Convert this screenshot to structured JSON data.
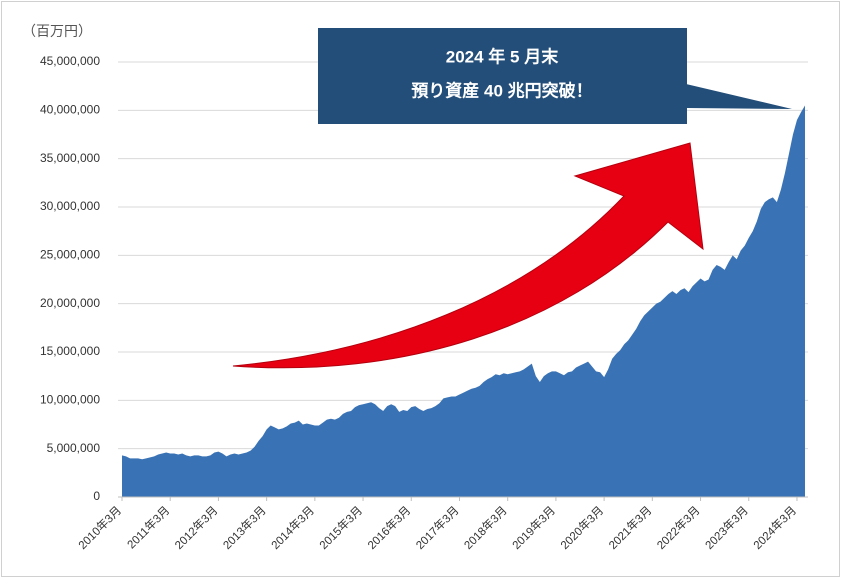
{
  "chart_data": {
    "type": "area",
    "y_label": "（百万円）",
    "annotations": [
      "2024 年 5 月末",
      "預り資産 40 兆円突破！"
    ],
    "color": "#3a73b5",
    "grid": true,
    "ylim": [
      0,
      45000000
    ],
    "yticks": [
      0,
      {
        "value": 5000000,
        "label": "5,000,000"
      },
      {
        "value": 10000000,
        "label": "10,000,000"
      },
      {
        "value": 15000000,
        "label": "15,000,000"
      },
      {
        "value": 20000000,
        "label": "20,000,000"
      },
      {
        "value": 25000000,
        "label": "25,000,000"
      },
      {
        "value": 30000000,
        "label": "30,000,000"
      },
      {
        "value": 35000000,
        "label": "35,000,000"
      },
      {
        "value": 40000000,
        "label": "40,000,000"
      },
      {
        "value": 45000000,
        "label": "45,000,000"
      }
    ],
    "categories": [
      "2010年3月",
      null,
      null,
      null,
      null,
      null,
      null,
      null,
      null,
      null,
      null,
      null,
      "2011年3月",
      null,
      null,
      null,
      null,
      null,
      null,
      null,
      null,
      null,
      null,
      null,
      "2012年3月",
      null,
      null,
      null,
      null,
      null,
      null,
      null,
      null,
      null,
      null,
      null,
      "2013年3月",
      null,
      null,
      null,
      null,
      null,
      null,
      null,
      null,
      null,
      null,
      null,
      "2014年3月",
      null,
      null,
      null,
      null,
      null,
      null,
      null,
      null,
      null,
      null,
      null,
      "2015年3月",
      null,
      null,
      null,
      null,
      null,
      null,
      null,
      null,
      null,
      null,
      null,
      "2016年3月",
      null,
      null,
      null,
      null,
      null,
      null,
      null,
      null,
      null,
      null,
      null,
      "2017年3月",
      null,
      null,
      null,
      null,
      null,
      null,
      null,
      null,
      null,
      null,
      null,
      "2018年3月",
      null,
      null,
      null,
      null,
      null,
      null,
      null,
      null,
      null,
      null,
      null,
      "2019年3月",
      null,
      null,
      null,
      null,
      null,
      null,
      null,
      null,
      null,
      null,
      null,
      "2020年3月",
      null,
      null,
      null,
      null,
      null,
      null,
      null,
      null,
      null,
      null,
      null,
      "2021年3月",
      null,
      null,
      null,
      null,
      null,
      null,
      null,
      null,
      null,
      null,
      null,
      "2022年3月",
      null,
      null,
      null,
      null,
      null,
      null,
      null,
      null,
      null,
      null,
      null,
      "2023年3月",
      null,
      null,
      null,
      null,
      null,
      null,
      null,
      null,
      null,
      null,
      null,
      "2024年3月",
      null,
      null
    ],
    "values": [
      4300000,
      4200000,
      4000000,
      4000000,
      4000000,
      3900000,
      4000000,
      4100000,
      4200000,
      4400000,
      4500000,
      4600000,
      4500000,
      4500000,
      4400000,
      4500000,
      4300000,
      4200000,
      4300000,
      4300000,
      4200000,
      4200000,
      4300000,
      4600000,
      4700000,
      4500000,
      4200000,
      4400000,
      4500000,
      4400000,
      4500000,
      4600000,
      4800000,
      5200000,
      5800000,
      6300000,
      7000000,
      7400000,
      7200000,
      7000000,
      7100000,
      7300000,
      7600000,
      7700000,
      7900000,
      7500000,
      7600000,
      7500000,
      7400000,
      7400000,
      7700000,
      8000000,
      8100000,
      8000000,
      8200000,
      8600000,
      8800000,
      8900000,
      9300000,
      9500000,
      9600000,
      9700000,
      9800000,
      9600000,
      9200000,
      8900000,
      9400000,
      9600000,
      9400000,
      8800000,
      9000000,
      8900000,
      9300000,
      9400000,
      9100000,
      8900000,
      9100000,
      9200000,
      9400000,
      9700000,
      10200000,
      10300000,
      10400000,
      10400000,
      10600000,
      10800000,
      11000000,
      11200000,
      11300000,
      11500000,
      11900000,
      12200000,
      12400000,
      12700000,
      12600000,
      12800000,
      12700000,
      12800000,
      12900000,
      13000000,
      13200000,
      13500000,
      13800000,
      12500000,
      11900000,
      12500000,
      12800000,
      13000000,
      13000000,
      12800000,
      12600000,
      12900000,
      13000000,
      13400000,
      13600000,
      13800000,
      14000000,
      13500000,
      13000000,
      12900000,
      12400000,
      13200000,
      14300000,
      14800000,
      15200000,
      15800000,
      16200000,
      16800000,
      17400000,
      18200000,
      18800000,
      19200000,
      19600000,
      20000000,
      20200000,
      20600000,
      21000000,
      21300000,
      21000000,
      21400000,
      21600000,
      21200000,
      21800000,
      22200000,
      22600000,
      22300000,
      22500000,
      23500000,
      24000000,
      23800000,
      23500000,
      24300000,
      25000000,
      24600000,
      25500000,
      26000000,
      26800000,
      27500000,
      28500000,
      29800000,
      30500000,
      30800000,
      31000000,
      30500000,
      31800000,
      33500000,
      35500000,
      37500000,
      39000000,
      39800000,
      40500000
    ]
  }
}
